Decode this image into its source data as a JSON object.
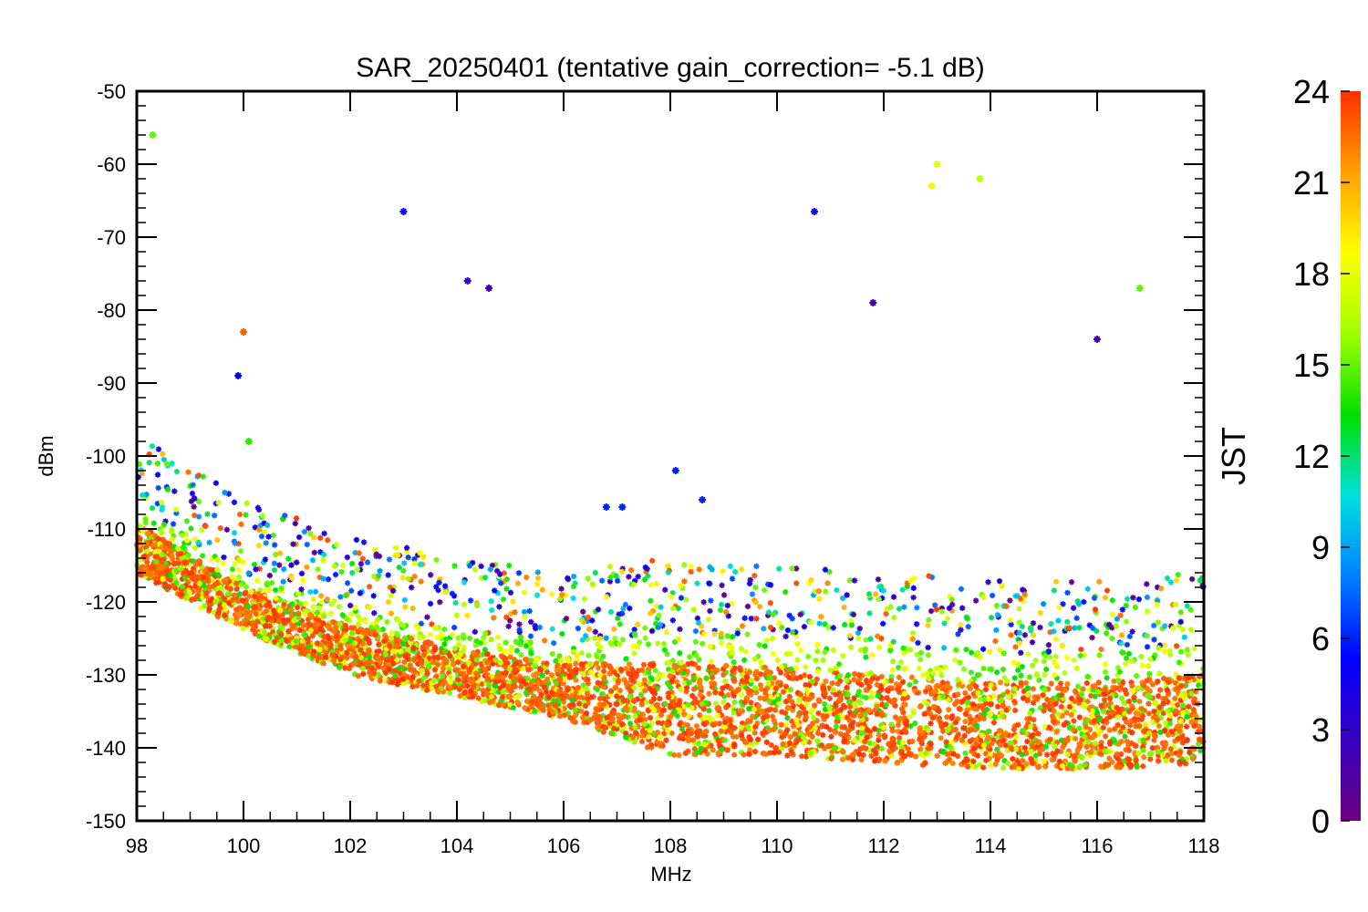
{
  "chart_data": {
    "type": "scatter",
    "title": "SAR_20250401 (tentative gain_correction= -5.1 dB)",
    "xlabel": "MHz",
    "ylabel": "dBm",
    "xlim": [
      98,
      118
    ],
    "ylim": [
      -150,
      -50
    ],
    "xticks": [
      98,
      100,
      102,
      104,
      106,
      108,
      110,
      112,
      114,
      116,
      118
    ],
    "yticks": [
      -50,
      -60,
      -70,
      -80,
      -90,
      -100,
      -110,
      -120,
      -130,
      -140,
      -150
    ],
    "xtick_labels": [
      "98",
      "100",
      "102",
      "104",
      "106",
      "108",
      "110",
      "112",
      "114",
      "116",
      "118"
    ],
    "ytick_labels": [
      "-50",
      "-60",
      "-70",
      "-80",
      "-90",
      "-100",
      "-110",
      "-120",
      "-130",
      "-140",
      "-150"
    ],
    "grid": false,
    "marker": "asterisk",
    "colorbar": {
      "label": "JST",
      "range": [
        0,
        24
      ],
      "ticks": [
        0,
        3,
        6,
        9,
        12,
        15,
        18,
        21,
        24
      ],
      "tick_labels": [
        "0",
        "3",
        "6",
        "9",
        "12",
        "15",
        "18",
        "21",
        "24"
      ],
      "colormap": [
        "#6a0080",
        "#3a00c0",
        "#0000ff",
        "#0080ff",
        "#00e0e0",
        "#00e000",
        "#a0ff00",
        "#ffff00",
        "#ffa000",
        "#ff3000"
      ]
    },
    "noise_floor": {
      "description_points_x": [
        98,
        100,
        102,
        104,
        106,
        108,
        110,
        112,
        114,
        116,
        118
      ],
      "lower_y": [
        -116,
        -124,
        -130,
        -133,
        -136,
        -141,
        -141,
        -142,
        -143,
        -143,
        -142
      ],
      "upper_y": [
        -107,
        -116,
        -121,
        -124,
        -126,
        -124,
        -125,
        -126,
        -127,
        -127,
        -126
      ]
    },
    "carrier_peaks": [
      {
        "x": 98.3,
        "y": -56,
        "jst": 15
      },
      {
        "x": 99.9,
        "y": -89,
        "jst": 5
      },
      {
        "x": 100.0,
        "y": -83,
        "jst": 23
      },
      {
        "x": 100.1,
        "y": -98,
        "jst": 14
      },
      {
        "x": 103.0,
        "y": -66.5,
        "jst": 5
      },
      {
        "x": 104.2,
        "y": -76,
        "jst": 3
      },
      {
        "x": 104.6,
        "y": -77,
        "jst": 3
      },
      {
        "x": 106.8,
        "y": -107,
        "jst": 6
      },
      {
        "x": 107.1,
        "y": -107,
        "jst": 6
      },
      {
        "x": 108.1,
        "y": -102,
        "jst": 6
      },
      {
        "x": 108.6,
        "y": -106,
        "jst": 6
      },
      {
        "x": 110.7,
        "y": -66.5,
        "jst": 5
      },
      {
        "x": 111.8,
        "y": -79,
        "jst": 2
      },
      {
        "x": 112.9,
        "y": -63,
        "jst": 19
      },
      {
        "x": 113.0,
        "y": -60,
        "jst": 18
      },
      {
        "x": 113.8,
        "y": -62,
        "jst": 17
      },
      {
        "x": 116.0,
        "y": -84,
        "jst": 2
      },
      {
        "x": 116.8,
        "y": -77,
        "jst": 15
      }
    ]
  }
}
